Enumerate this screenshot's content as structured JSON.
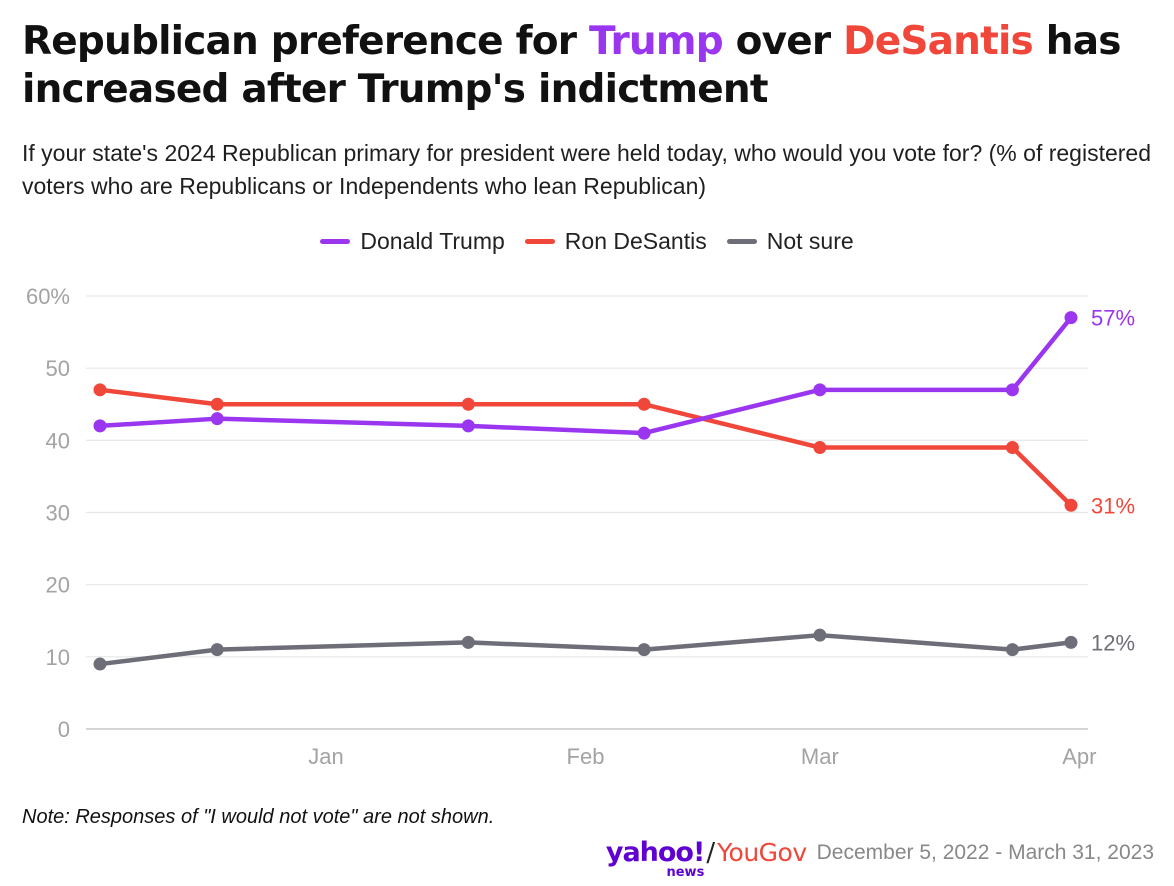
{
  "header": {
    "title_part1": "Republican preference for ",
    "title_trump": "Trump",
    "title_part2": " over ",
    "title_desantis": "DeSantis",
    "title_part3": " has increased after Trump's indictment",
    "subtitle": "If your state's 2024 Republican primary for president were held today, who would you vote for? (% of registered voters who are Republicans or Independents who lean Republican)"
  },
  "legend": [
    {
      "label": "Donald Trump",
      "color": "#9a36f0"
    },
    {
      "label": "Ron DeSantis",
      "color": "#f0473a"
    },
    {
      "label": "Not sure",
      "color": "#6e6e78"
    }
  ],
  "chart_data": {
    "type": "line",
    "x": [
      "2022-12-05",
      "2022-12-19",
      "2023-01-18",
      "2023-02-08",
      "2023-03-01",
      "2023-03-24",
      "2023-03-31"
    ],
    "x_ticks": [
      {
        "label": "Jan",
        "date": "2023-01-01"
      },
      {
        "label": "Feb",
        "date": "2023-02-01"
      },
      {
        "label": "Mar",
        "date": "2023-03-01"
      },
      {
        "label": "Apr",
        "date": "2023-04-01"
      }
    ],
    "y_ticks": [
      "60%",
      "50",
      "40",
      "30",
      "20",
      "10",
      "0"
    ],
    "ylim": [
      0,
      60
    ],
    "grid": true,
    "legend_position": "top",
    "series": [
      {
        "name": "Donald Trump",
        "color": "#9a36f0",
        "values": [
          42,
          43,
          42,
          41,
          47,
          47,
          57
        ],
        "end_label": "57%"
      },
      {
        "name": "Ron DeSantis",
        "color": "#f0473a",
        "values": [
          47,
          45,
          45,
          45,
          39,
          39,
          31
        ],
        "end_label": "31%"
      },
      {
        "name": "Not sure",
        "color": "#6e6e78",
        "values": [
          9,
          11,
          12,
          11,
          13,
          11,
          12
        ],
        "end_label": "12%"
      }
    ]
  },
  "footer": {
    "note": "Note: Responses of \"I would not vote\" are not shown.",
    "logo_yahoo": "yahoo!",
    "logo_news": "news",
    "logo_slash": "/",
    "logo_yougov": "YouGov",
    "date_range": "December 5, 2022 - March 31, 2023"
  }
}
